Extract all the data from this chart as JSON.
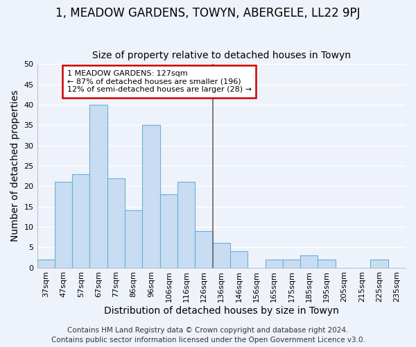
{
  "title": "1, MEADOW GARDENS, TOWYN, ABERGELE, LL22 9PJ",
  "subtitle": "Size of property relative to detached houses in Towyn",
  "xlabel": "Distribution of detached houses by size in Towyn",
  "ylabel": "Number of detached properties",
  "categories": [
    "37sqm",
    "47sqm",
    "57sqm",
    "67sqm",
    "77sqm",
    "86sqm",
    "96sqm",
    "106sqm",
    "116sqm",
    "126sqm",
    "136sqm",
    "146sqm",
    "156sqm",
    "165sqm",
    "175sqm",
    "185sqm",
    "195sqm",
    "205sqm",
    "215sqm",
    "225sqm",
    "235sqm"
  ],
  "values": [
    2,
    21,
    23,
    40,
    22,
    14,
    35,
    18,
    21,
    9,
    6,
    4,
    0,
    2,
    2,
    3,
    2,
    0,
    0,
    2,
    0
  ],
  "bar_color": "#c8ddf2",
  "bar_edge_color": "#6aaed6",
  "vline_index": 9,
  "vline_color": "#666666",
  "annotation_text": "1 MEADOW GARDENS: 127sqm\n← 87% of detached houses are smaller (196)\n12% of semi-detached houses are larger (28) →",
  "annotation_box_color": "#ffffff",
  "annotation_box_edge": "#cc0000",
  "ylim": [
    0,
    50
  ],
  "yticks": [
    0,
    5,
    10,
    15,
    20,
    25,
    30,
    35,
    40,
    45,
    50
  ],
  "footer1": "Contains HM Land Registry data © Crown copyright and database right 2024.",
  "footer2": "Contains public sector information licensed under the Open Government Licence v3.0.",
  "bg_color": "#eef2fa",
  "grid_color": "#ffffff",
  "title_fontsize": 12,
  "subtitle_fontsize": 10,
  "axis_label_fontsize": 10,
  "tick_fontsize": 8,
  "footer_fontsize": 7.5
}
